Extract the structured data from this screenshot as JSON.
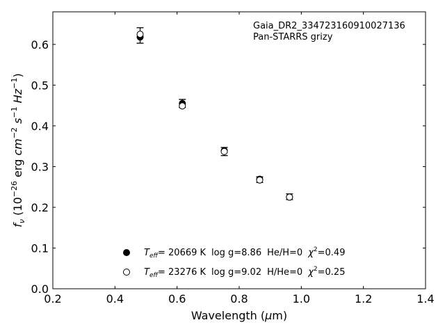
{
  "chart_data": {
    "type": "scatter",
    "xlabel": "Wavelength (μm)",
    "ylabel": "f_ν (10^-26 erg cm^-2 s^-1 Hz^-1)",
    "xlim": [
      0.2,
      1.4
    ],
    "ylim": [
      0.0,
      0.68
    ],
    "xticks": [
      0.2,
      0.4,
      0.6,
      0.8,
      1.0,
      1.2,
      1.4
    ],
    "yticks": [
      0.0,
      0.1,
      0.2,
      0.3,
      0.4,
      0.5,
      0.6
    ],
    "grid": false,
    "annotation": [
      "Gaia_DR2_334723160910027136",
      "Pan-STARRS grizy"
    ],
    "observed": {
      "x": [
        0.481,
        0.617,
        0.752,
        0.866,
        0.962
      ],
      "y": [
        0.622,
        0.455,
        0.337,
        0.268,
        0.226
      ],
      "yerr": [
        0.019,
        0.01,
        0.01,
        0.007,
        0.007
      ]
    },
    "series": [
      {
        "marker": "filled-circle",
        "legend": {
          "teff": "= 20669 K",
          "logg": "log g=8.86",
          "comp": "He/H=0",
          "chi2": "=0.49"
        },
        "x": [
          0.481,
          0.617,
          0.752,
          0.866,
          0.962
        ],
        "y": [
          0.618,
          0.455,
          0.339,
          0.269,
          0.225
        ]
      },
      {
        "marker": "open-circle",
        "legend": {
          "teff": "= 23276 K",
          "logg": "log g=9.02",
          "comp": "H/He=0",
          "chi2": "=0.25"
        },
        "x": [
          0.481,
          0.617,
          0.752,
          0.866,
          0.962
        ],
        "y": [
          0.625,
          0.449,
          0.337,
          0.267,
          0.225
        ]
      }
    ]
  }
}
